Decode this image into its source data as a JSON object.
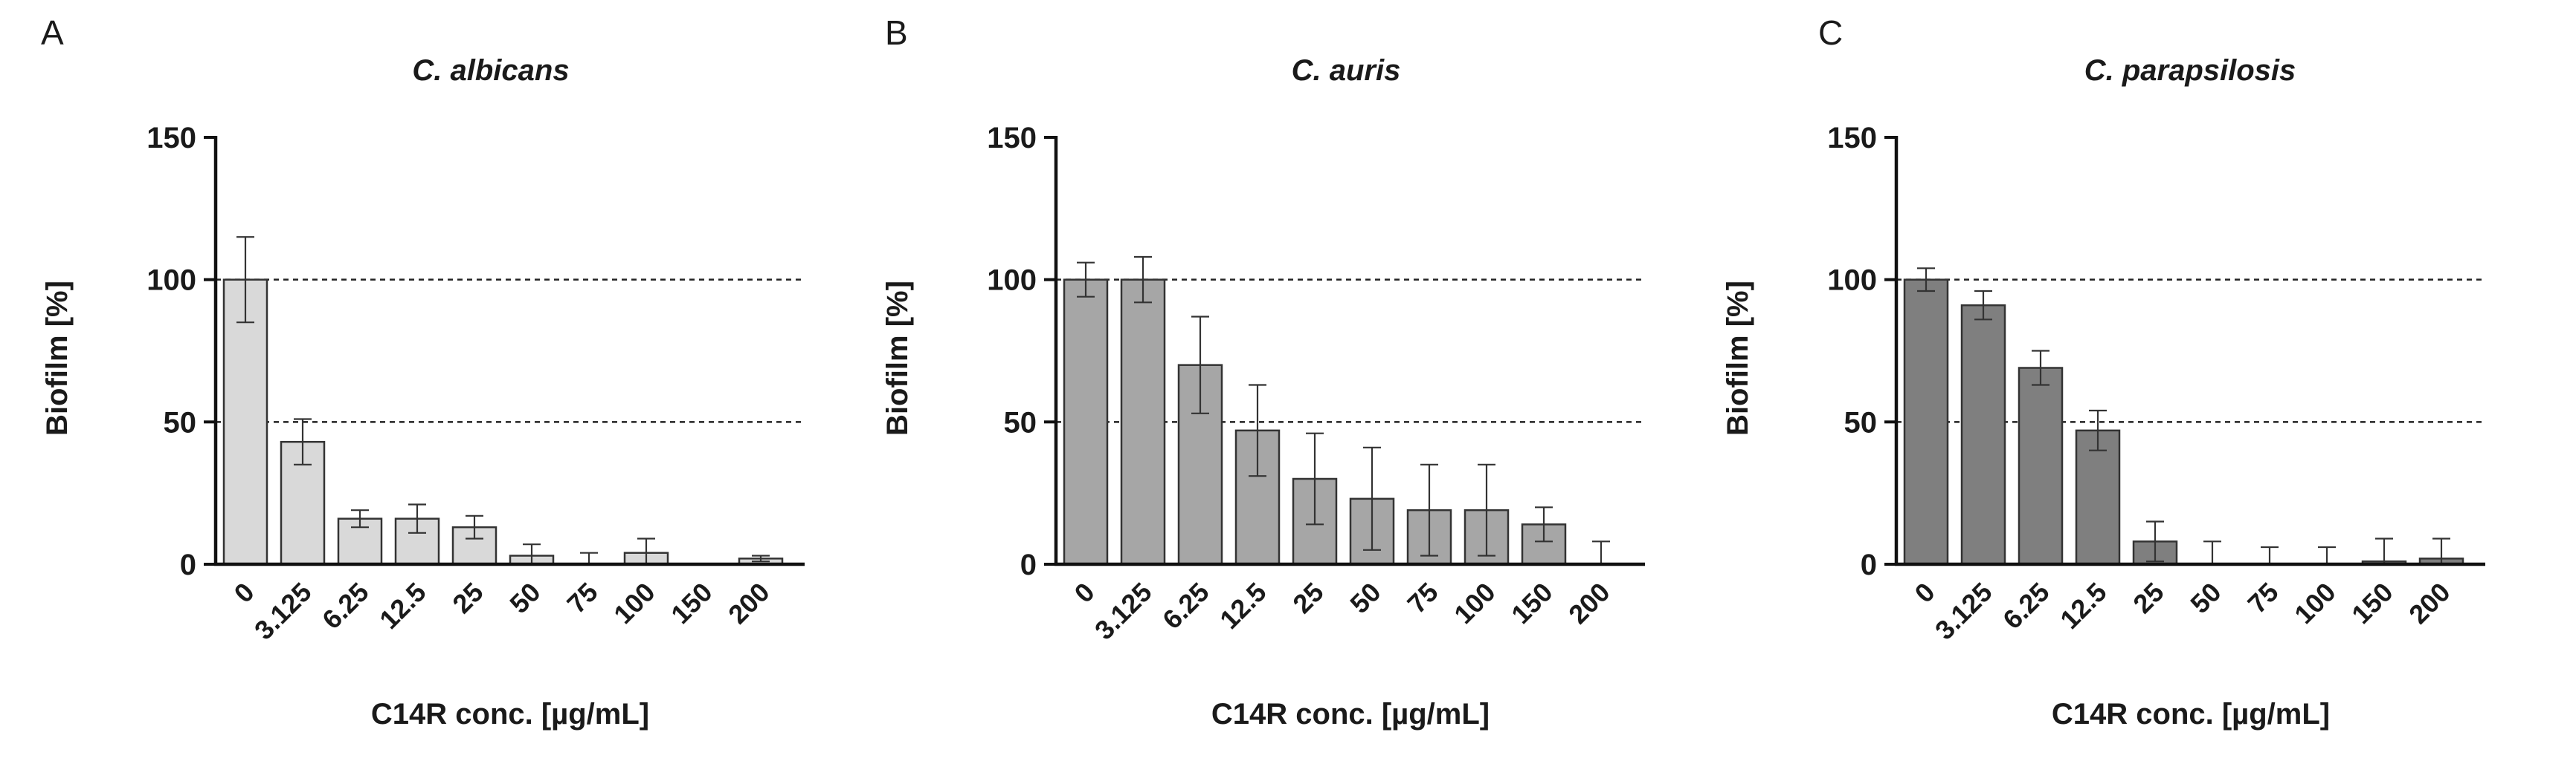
{
  "chart_data": [
    {
      "type": "bar",
      "panel": "A",
      "title": "C. albicans",
      "xlabel": "C14R conc. [µg/mL]",
      "ylabel": "Biofilm [%]",
      "ylim": [
        0,
        150
      ],
      "yticks": [
        "0",
        "50",
        "100",
        "150"
      ],
      "reference_lines": [
        50,
        100
      ],
      "bar_color": "#d9d9d9",
      "categories": [
        "0",
        "3.125",
        "6.25",
        "12.5",
        "25",
        "50",
        "75",
        "100",
        "150",
        "200"
      ],
      "values": [
        100,
        43,
        16,
        16,
        13,
        3,
        0,
        4,
        0,
        2
      ],
      "errors": [
        15,
        8,
        3,
        5,
        4,
        4,
        4,
        5,
        0,
        1
      ]
    },
    {
      "type": "bar",
      "panel": "B",
      "title": "C. auris",
      "xlabel": "C14R conc. [µg/mL]",
      "ylabel": "Biofilm [%]",
      "ylim": [
        0,
        150
      ],
      "yticks": [
        "0",
        "50",
        "100",
        "150"
      ],
      "reference_lines": [
        50,
        100
      ],
      "bar_color": "#a6a6a6",
      "categories": [
        "0",
        "3.125",
        "6.25",
        "12.5",
        "25",
        "50",
        "75",
        "100",
        "150",
        "200"
      ],
      "values": [
        100,
        100,
        70,
        47,
        30,
        23,
        19,
        19,
        14,
        0
      ],
      "errors": [
        6,
        8,
        17,
        16,
        16,
        18,
        16,
        16,
        6,
        8
      ]
    },
    {
      "type": "bar",
      "panel": "C",
      "title": "C. parapsilosis",
      "xlabel": "C14R conc. [µg/mL]",
      "ylabel": "Biofilm [%]",
      "ylim": [
        0,
        150
      ],
      "yticks": [
        "0",
        "50",
        "100",
        "150"
      ],
      "reference_lines": [
        50,
        100
      ],
      "bar_color": "#7f7f7f",
      "categories": [
        "0",
        "3.125",
        "6.25",
        "12.5",
        "25",
        "50",
        "75",
        "100",
        "150",
        "200"
      ],
      "values": [
        100,
        91,
        69,
        47,
        8,
        0,
        0,
        0,
        1,
        2
      ],
      "errors": [
        4,
        5,
        6,
        7,
        7,
        8,
        6,
        6,
        8,
        7
      ]
    }
  ]
}
